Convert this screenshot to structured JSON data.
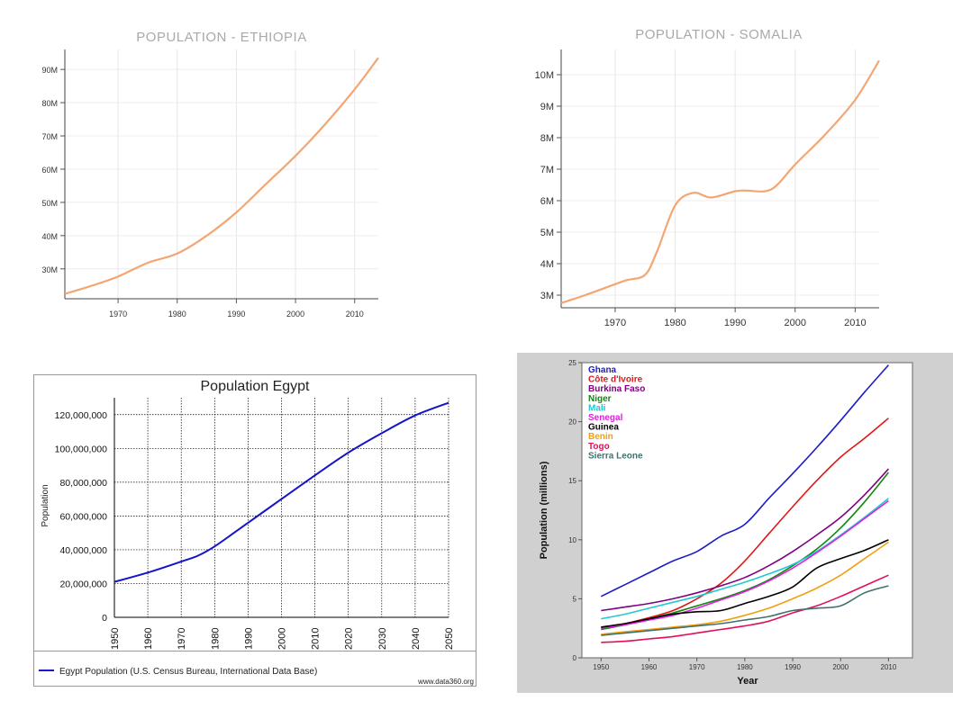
{
  "chart_data": [
    {
      "id": "ethiopia",
      "type": "line",
      "title": "POPULATION - ETHIOPIA",
      "xlabel": "",
      "ylabel": "",
      "xlim": [
        1961,
        2014
      ],
      "ylim": [
        21,
        96
      ],
      "xticks": [
        1970,
        1980,
        1990,
        2000,
        2010
      ],
      "yticks": [
        30,
        40,
        50,
        60,
        70,
        80,
        90
      ],
      "yticklabels": [
        "30M",
        "40M",
        "50M",
        "60M",
        "70M",
        "80M",
        "90M"
      ],
      "grid": true,
      "line_color": "#f4a672",
      "series": [
        {
          "x": [
            1961,
            1965,
            1970,
            1975,
            1980,
            1985,
            1990,
            1995,
            2000,
            2005,
            2010,
            2014
          ],
          "values": [
            22.5,
            24.6,
            27.7,
            31.8,
            34.6,
            40.0,
            47.0,
            55.5,
            64.0,
            73.5,
            84.0,
            93.5
          ]
        }
      ]
    },
    {
      "id": "somalia",
      "type": "line",
      "title": "POPULATION - SOMALIA",
      "xlabel": "",
      "ylabel": "",
      "xlim": [
        1961,
        2014
      ],
      "ylim": [
        2.6,
        10.8
      ],
      "xticks": [
        1970,
        1980,
        1990,
        2000,
        2010
      ],
      "yticks": [
        3,
        4,
        5,
        6,
        7,
        8,
        9,
        10
      ],
      "yticklabels": [
        "3M",
        "4M",
        "5M",
        "6M",
        "7M",
        "8M",
        "9M",
        "10M"
      ],
      "grid": true,
      "line_color": "#f4a672",
      "series": [
        {
          "x": [
            1961,
            1965,
            1970,
            1972,
            1975,
            1977,
            1980,
            1983,
            1986,
            1990,
            1992,
            1995,
            1997,
            2000,
            2005,
            2010,
            2014
          ],
          "values": [
            2.75,
            3.0,
            3.35,
            3.48,
            3.65,
            4.4,
            5.85,
            6.25,
            6.1,
            6.3,
            6.32,
            6.3,
            6.5,
            7.15,
            8.1,
            9.2,
            10.45
          ]
        }
      ]
    },
    {
      "id": "egypt",
      "type": "line",
      "title": "Population Egypt",
      "xlabel": "",
      "ylabel": "Population",
      "xlim": [
        1950,
        2050
      ],
      "ylim": [
        0,
        130000000
      ],
      "xticks": [
        1950,
        1960,
        1970,
        1980,
        1990,
        2000,
        2010,
        2020,
        2030,
        2040,
        2050
      ],
      "yticks": [
        0,
        20000000,
        40000000,
        60000000,
        80000000,
        100000000,
        120000000
      ],
      "yticklabels": [
        "0",
        "20,000,000",
        "40,000,000",
        "60,000,000",
        "80,000,000",
        "100,000,000",
        "120,000,000"
      ],
      "grid": true,
      "legend": "bottom",
      "source": "www.data360.org",
      "series": [
        {
          "name": "Egypt Population (U.S. Census Bureau, International Data Base)",
          "color": "#1414c8",
          "x": [
            1950,
            1960,
            1970,
            1975,
            1980,
            1990,
            2000,
            2010,
            2020,
            2030,
            2040,
            2050
          ],
          "values": [
            21000000,
            26500000,
            33000000,
            36500000,
            42000000,
            56000000,
            70000000,
            84000000,
            97500000,
            109000000,
            119500000,
            127000000
          ]
        }
      ]
    },
    {
      "id": "west-africa",
      "type": "line",
      "title": "",
      "xlabel": "Year",
      "ylabel": "Population (millions)",
      "xlim": [
        1946,
        2015
      ],
      "ylim": [
        0,
        25
      ],
      "xticks": [
        1950,
        1960,
        1970,
        1980,
        1990,
        2000,
        2010
      ],
      "yticks": [
        0,
        5,
        10,
        15,
        20,
        25
      ],
      "grid": false,
      "legend": "top-left",
      "x": [
        1950,
        1955,
        1960,
        1965,
        1970,
        1975,
        1980,
        1985,
        1990,
        1995,
        2000,
        2005,
        2010
      ],
      "series": [
        {
          "name": "Ghana",
          "color": "#1c1cc8",
          "values": [
            5.2,
            6.2,
            7.2,
            8.2,
            9.0,
            10.3,
            11.3,
            13.5,
            15.6,
            17.8,
            20.1,
            22.5,
            24.8
          ]
        },
        {
          "name": "Côte d'Ivoire",
          "color": "#e01818",
          "values": [
            2.6,
            2.9,
            3.4,
            4.0,
            5.0,
            6.3,
            8.2,
            10.5,
            12.8,
            15.0,
            17.0,
            18.6,
            20.3
          ]
        },
        {
          "name": "Burkina Faso",
          "color": "#800080",
          "values": [
            4.0,
            4.3,
            4.6,
            5.0,
            5.5,
            6.1,
            6.8,
            7.8,
            9.0,
            10.4,
            11.9,
            13.8,
            16.0
          ]
        },
        {
          "name": "Niger",
          "color": "#108810",
          "values": [
            2.4,
            2.8,
            3.3,
            3.8,
            4.4,
            5.0,
            5.7,
            6.6,
            7.8,
            9.2,
            11.0,
            13.2,
            15.7
          ]
        },
        {
          "name": "Mali",
          "color": "#22c8d0",
          "values": [
            3.3,
            3.7,
            4.2,
            4.7,
            5.2,
            5.8,
            6.4,
            7.1,
            7.9,
            9.0,
            10.4,
            11.9,
            13.5
          ]
        },
        {
          "name": "Senegal",
          "color": "#e020e0",
          "values": [
            2.5,
            2.8,
            3.2,
            3.6,
            4.2,
            4.9,
            5.6,
            6.5,
            7.6,
            8.9,
            10.3,
            11.8,
            13.3
          ]
        },
        {
          "name": "Guinea",
          "color": "#000000",
          "values": [
            2.6,
            2.9,
            3.3,
            3.7,
            3.9,
            4.0,
            4.6,
            5.2,
            6.0,
            7.6,
            8.4,
            9.1,
            10.0
          ]
        },
        {
          "name": "Benin",
          "color": "#f0a010",
          "values": [
            2.0,
            2.2,
            2.4,
            2.6,
            2.8,
            3.1,
            3.6,
            4.2,
            5.0,
            5.9,
            7.0,
            8.4,
            9.8
          ]
        },
        {
          "name": "Togo",
          "color": "#e0105a",
          "values": [
            1.3,
            1.4,
            1.6,
            1.8,
            2.1,
            2.4,
            2.7,
            3.1,
            3.8,
            4.4,
            5.2,
            6.1,
            7.0
          ]
        },
        {
          "name": "Sierra Leone",
          "color": "#407070",
          "values": [
            1.9,
            2.1,
            2.3,
            2.5,
            2.7,
            2.9,
            3.2,
            3.5,
            4.0,
            4.2,
            4.4,
            5.5,
            6.1
          ]
        }
      ]
    }
  ]
}
